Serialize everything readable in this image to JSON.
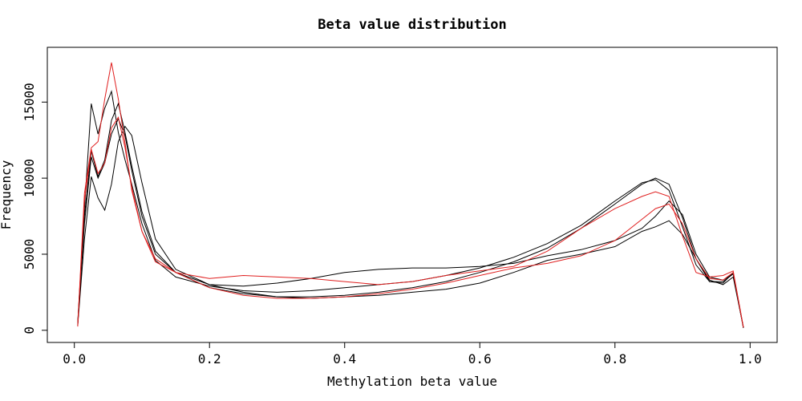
{
  "chart_data": {
    "type": "line",
    "title": "Beta value distribution",
    "xlabel": "Methylation beta value",
    "ylabel": "Frequency",
    "xlim": [
      -0.04,
      1.04
    ],
    "ylim": [
      -800,
      18600
    ],
    "x_ticks": [
      0.0,
      0.2,
      0.4,
      0.6,
      0.8,
      1.0
    ],
    "x_tick_labels": [
      "0.0",
      "0.2",
      "0.4",
      "0.6",
      "0.8",
      "1.0"
    ],
    "y_ticks": [
      0,
      5000,
      10000,
      15000
    ],
    "y_tick_labels": [
      "0",
      "5000",
      "10000",
      "15000"
    ],
    "grid": false,
    "series": [
      {
        "color": "#000000",
        "points": [
          [
            0.005,
            500
          ],
          [
            0.015,
            8000
          ],
          [
            0.025,
            14900
          ],
          [
            0.035,
            12900
          ],
          [
            0.045,
            14600
          ],
          [
            0.055,
            15700
          ],
          [
            0.065,
            13000
          ],
          [
            0.075,
            11200
          ],
          [
            0.085,
            9600
          ],
          [
            0.1,
            7000
          ],
          [
            0.12,
            4600
          ],
          [
            0.15,
            3500
          ],
          [
            0.2,
            2900
          ],
          [
            0.25,
            2600
          ],
          [
            0.3,
            2500
          ],
          [
            0.35,
            2600
          ],
          [
            0.4,
            2800
          ],
          [
            0.45,
            3000
          ],
          [
            0.5,
            3200
          ],
          [
            0.55,
            3600
          ],
          [
            0.6,
            4100
          ],
          [
            0.65,
            4800
          ],
          [
            0.7,
            5700
          ],
          [
            0.75,
            6900
          ],
          [
            0.8,
            8500
          ],
          [
            0.84,
            9700
          ],
          [
            0.86,
            9900
          ],
          [
            0.88,
            9200
          ],
          [
            0.9,
            6800
          ],
          [
            0.92,
            4300
          ],
          [
            0.94,
            3200
          ],
          [
            0.96,
            3200
          ],
          [
            0.975,
            3700
          ],
          [
            0.99,
            200
          ]
        ]
      },
      {
        "color": "#000000",
        "points": [
          [
            0.005,
            300
          ],
          [
            0.015,
            6000
          ],
          [
            0.025,
            10100
          ],
          [
            0.035,
            8700
          ],
          [
            0.045,
            7900
          ],
          [
            0.055,
            9600
          ],
          [
            0.065,
            12400
          ],
          [
            0.075,
            13400
          ],
          [
            0.085,
            12800
          ],
          [
            0.1,
            9700
          ],
          [
            0.12,
            6000
          ],
          [
            0.15,
            4000
          ],
          [
            0.2,
            3000
          ],
          [
            0.25,
            2500
          ],
          [
            0.3,
            2200
          ],
          [
            0.35,
            2100
          ],
          [
            0.4,
            2200
          ],
          [
            0.45,
            2300
          ],
          [
            0.5,
            2500
          ],
          [
            0.55,
            2700
          ],
          [
            0.6,
            3100
          ],
          [
            0.65,
            3800
          ],
          [
            0.7,
            4600
          ],
          [
            0.75,
            5000
          ],
          [
            0.8,
            5500
          ],
          [
            0.84,
            6500
          ],
          [
            0.86,
            6800
          ],
          [
            0.88,
            7200
          ],
          [
            0.9,
            6300
          ],
          [
            0.92,
            4700
          ],
          [
            0.94,
            3200
          ],
          [
            0.96,
            3100
          ],
          [
            0.975,
            3800
          ],
          [
            0.99,
            150
          ]
        ]
      },
      {
        "color": "#000000",
        "points": [
          [
            0.005,
            400
          ],
          [
            0.015,
            7500
          ],
          [
            0.025,
            11800
          ],
          [
            0.035,
            10100
          ],
          [
            0.045,
            11200
          ],
          [
            0.055,
            13800
          ],
          [
            0.065,
            14900
          ],
          [
            0.075,
            13000
          ],
          [
            0.085,
            10800
          ],
          [
            0.1,
            7800
          ],
          [
            0.12,
            5200
          ],
          [
            0.15,
            3800
          ],
          [
            0.2,
            2800
          ],
          [
            0.25,
            2400
          ],
          [
            0.3,
            2200
          ],
          [
            0.35,
            2200
          ],
          [
            0.4,
            2300
          ],
          [
            0.45,
            2500
          ],
          [
            0.5,
            2800
          ],
          [
            0.55,
            3200
          ],
          [
            0.6,
            3800
          ],
          [
            0.65,
            4500
          ],
          [
            0.7,
            5400
          ],
          [
            0.75,
            6700
          ],
          [
            0.8,
            8300
          ],
          [
            0.84,
            9600
          ],
          [
            0.86,
            10000
          ],
          [
            0.88,
            9600
          ],
          [
            0.9,
            7400
          ],
          [
            0.92,
            4700
          ],
          [
            0.94,
            3300
          ],
          [
            0.96,
            3000
          ],
          [
            0.975,
            3500
          ],
          [
            0.99,
            200
          ]
        ]
      },
      {
        "color": "#000000",
        "points": [
          [
            0.005,
            350
          ],
          [
            0.015,
            7000
          ],
          [
            0.025,
            11400
          ],
          [
            0.035,
            10000
          ],
          [
            0.045,
            11000
          ],
          [
            0.055,
            12900
          ],
          [
            0.065,
            13900
          ],
          [
            0.075,
            12800
          ],
          [
            0.085,
            10500
          ],
          [
            0.1,
            7500
          ],
          [
            0.12,
            5000
          ],
          [
            0.15,
            3800
          ],
          [
            0.2,
            3000
          ],
          [
            0.25,
            2900
          ],
          [
            0.3,
            3100
          ],
          [
            0.35,
            3400
          ],
          [
            0.4,
            3800
          ],
          [
            0.45,
            4000
          ],
          [
            0.5,
            4100
          ],
          [
            0.55,
            4100
          ],
          [
            0.6,
            4200
          ],
          [
            0.65,
            4400
          ],
          [
            0.7,
            4900
          ],
          [
            0.75,
            5300
          ],
          [
            0.8,
            5900
          ],
          [
            0.84,
            6700
          ],
          [
            0.86,
            7500
          ],
          [
            0.88,
            8500
          ],
          [
            0.9,
            7600
          ],
          [
            0.92,
            5000
          ],
          [
            0.94,
            3500
          ],
          [
            0.96,
            3300
          ],
          [
            0.975,
            3700
          ],
          [
            0.99,
            180
          ]
        ]
      },
      {
        "color": "#e02020",
        "points": [
          [
            0.005,
            300
          ],
          [
            0.015,
            9000
          ],
          [
            0.025,
            12000
          ],
          [
            0.035,
            12400
          ],
          [
            0.045,
            15200
          ],
          [
            0.055,
            17600
          ],
          [
            0.065,
            15200
          ],
          [
            0.075,
            12300
          ],
          [
            0.085,
            9200
          ],
          [
            0.1,
            6500
          ],
          [
            0.12,
            4500
          ],
          [
            0.15,
            3800
          ],
          [
            0.2,
            3400
          ],
          [
            0.25,
            3600
          ],
          [
            0.3,
            3500
          ],
          [
            0.35,
            3400
          ],
          [
            0.4,
            3200
          ],
          [
            0.45,
            3000
          ],
          [
            0.5,
            3200
          ],
          [
            0.55,
            3600
          ],
          [
            0.6,
            3900
          ],
          [
            0.65,
            4200
          ],
          [
            0.7,
            5200
          ],
          [
            0.75,
            6700
          ],
          [
            0.8,
            8000
          ],
          [
            0.84,
            8800
          ],
          [
            0.86,
            9100
          ],
          [
            0.88,
            8800
          ],
          [
            0.9,
            6200
          ],
          [
            0.92,
            3800
          ],
          [
            0.94,
            3500
          ],
          [
            0.96,
            3600
          ],
          [
            0.975,
            3900
          ],
          [
            0.99,
            200
          ]
        ]
      },
      {
        "color": "#e02020",
        "points": [
          [
            0.005,
            250
          ],
          [
            0.015,
            8500
          ],
          [
            0.025,
            11900
          ],
          [
            0.035,
            10300
          ],
          [
            0.045,
            11000
          ],
          [
            0.055,
            13300
          ],
          [
            0.065,
            14000
          ],
          [
            0.075,
            12000
          ],
          [
            0.085,
            9400
          ],
          [
            0.1,
            6500
          ],
          [
            0.12,
            4700
          ],
          [
            0.15,
            3800
          ],
          [
            0.2,
            2800
          ],
          [
            0.25,
            2300
          ],
          [
            0.3,
            2100
          ],
          [
            0.35,
            2100
          ],
          [
            0.4,
            2200
          ],
          [
            0.45,
            2400
          ],
          [
            0.5,
            2700
          ],
          [
            0.55,
            3100
          ],
          [
            0.6,
            3600
          ],
          [
            0.65,
            4100
          ],
          [
            0.7,
            4400
          ],
          [
            0.75,
            4900
          ],
          [
            0.8,
            5900
          ],
          [
            0.84,
            7300
          ],
          [
            0.86,
            8000
          ],
          [
            0.88,
            8300
          ],
          [
            0.9,
            7000
          ],
          [
            0.92,
            4700
          ],
          [
            0.94,
            3400
          ],
          [
            0.96,
            3300
          ],
          [
            0.975,
            3800
          ],
          [
            0.99,
            180
          ]
        ]
      }
    ]
  }
}
